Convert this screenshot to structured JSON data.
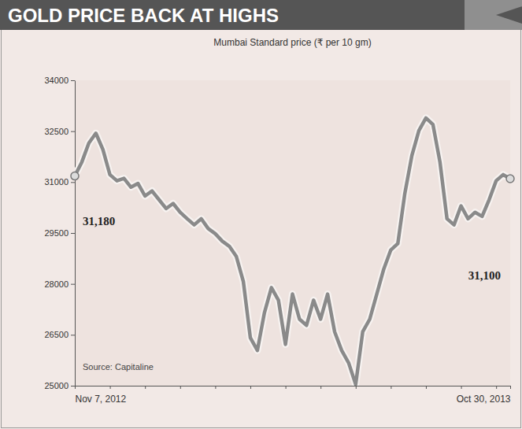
{
  "chart_data": {
    "type": "line",
    "title": "GOLD PRICE BACK AT HIGHS",
    "subtitle": "Mumbai Standard price (₹ per 10 gm)",
    "source": "Source: Capitaline",
    "categories": [
      "Nov 7, 2012",
      null,
      null,
      null,
      null,
      null,
      null,
      null,
      null,
      null,
      null,
      null,
      null,
      null,
      null,
      null,
      null,
      null,
      null,
      null,
      null,
      null,
      null,
      null,
      null,
      null,
      null,
      null,
      null,
      null,
      null,
      null,
      null,
      null,
      null,
      null,
      null,
      null,
      null,
      null,
      null,
      null,
      null,
      null,
      null,
      null,
      null,
      null,
      null,
      null,
      null,
      null,
      null,
      null,
      null,
      null,
      null,
      null,
      null,
      null,
      null,
      null,
      "Oct 30, 2013"
    ],
    "values": [
      31180,
      31590,
      32150,
      32440,
      31960,
      31220,
      31040,
      31110,
      30850,
      30960,
      30590,
      30740,
      30480,
      30220,
      30370,
      30110,
      29920,
      29740,
      29920,
      29630,
      29480,
      29260,
      29110,
      28810,
      28070,
      26410,
      26040,
      27150,
      27890,
      27520,
      26220,
      27700,
      26960,
      26780,
      27520,
      26960,
      27700,
      26590,
      26040,
      25670,
      25040,
      26590,
      26960,
      27700,
      28440,
      29000,
      29190,
      30670,
      31780,
      32520,
      32890,
      32700,
      31590,
      29920,
      29740,
      30300,
      29920,
      30110,
      29990,
      30480,
      31040,
      31220,
      31100
    ],
    "value_labels": [
      "31,180",
      null,
      null,
      null,
      null,
      null,
      null,
      null,
      null,
      null,
      null,
      null,
      null,
      null,
      null,
      null,
      null,
      null,
      null,
      null,
      null,
      null,
      null,
      null,
      null,
      null,
      null,
      null,
      null,
      null,
      null,
      null,
      null,
      null,
      null,
      null,
      null,
      null,
      null,
      null,
      null,
      null,
      null,
      null,
      null,
      null,
      null,
      null,
      null,
      null,
      null,
      null,
      null,
      null,
      null,
      null,
      null,
      null,
      null,
      null,
      null,
      null,
      "31,100"
    ],
    "data_labels": true,
    "color": "#8a8a8a",
    "ylim": [
      25000,
      34000
    ],
    "yticks": [
      25000,
      26500,
      28000,
      29500,
      31000,
      32500,
      34000
    ],
    "grid": false
  }
}
